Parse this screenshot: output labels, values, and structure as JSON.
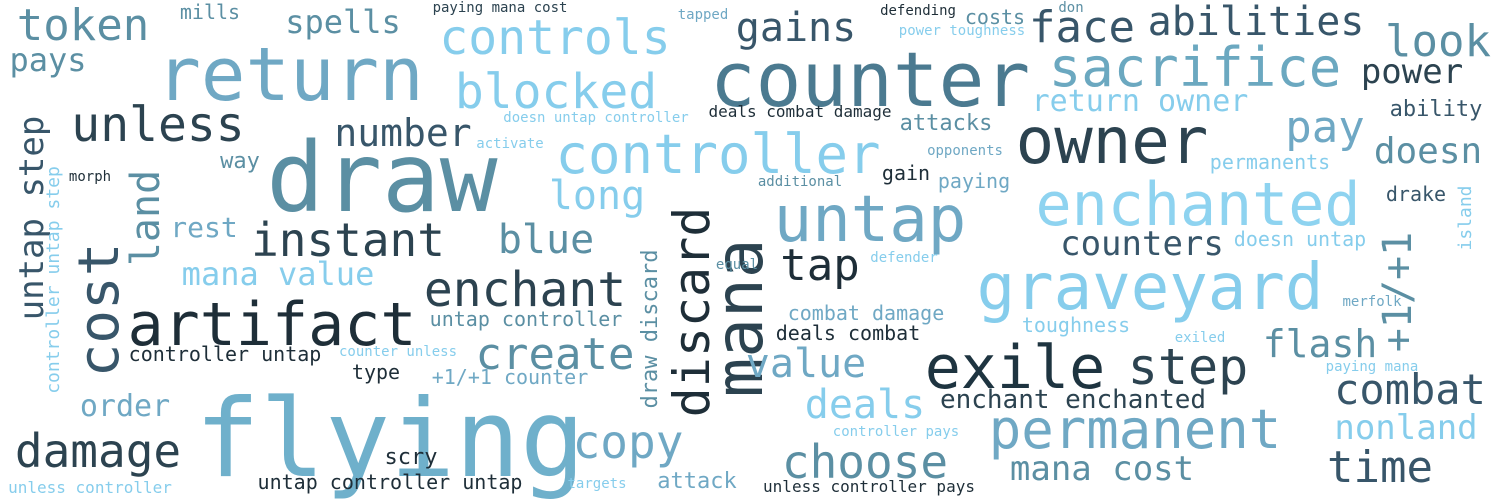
{
  "words": [
    {
      "text": "flying",
      "size": 108,
      "color": "#6fb0cb",
      "orient": "h"
    },
    {
      "text": "draw",
      "size": 96,
      "color": "#5b8fa3",
      "orient": "h"
    },
    {
      "text": "counter",
      "size": 76,
      "color": "#4b7a90",
      "orient": "h"
    },
    {
      "text": "return",
      "size": 74,
      "color": "#6fa8c4",
      "orient": "h"
    },
    {
      "text": "owner",
      "size": 64,
      "color": "#2c4350",
      "orient": "h"
    },
    {
      "text": "untap",
      "size": 64,
      "color": "#6fa8c4",
      "orient": "h"
    },
    {
      "text": "graveyard",
      "size": 64,
      "color": "#86cdec",
      "orient": "h"
    },
    {
      "text": "enchanted",
      "size": 60,
      "color": "#8ed3f0",
      "orient": "h"
    },
    {
      "text": "artifact",
      "size": 60,
      "color": "#1e2e38",
      "orient": "h"
    },
    {
      "text": "sacrifice",
      "size": 54,
      "color": "#6ba8c0",
      "orient": "h"
    },
    {
      "text": "exile",
      "size": 60,
      "color": "#1e3440",
      "orient": "h"
    },
    {
      "text": "permanent",
      "size": 54,
      "color": "#6fa8c4",
      "orient": "h"
    },
    {
      "text": "controller",
      "size": 54,
      "color": "#86cdec",
      "orient": "h"
    },
    {
      "text": "mana",
      "size": 66,
      "color": "#2c4350",
      "orient": "v"
    },
    {
      "text": "discard",
      "size": 50,
      "color": "#1e2e38",
      "orient": "v"
    },
    {
      "text": "cost",
      "size": 56,
      "color": "#38566a",
      "orient": "v"
    },
    {
      "text": "controls",
      "size": 48,
      "color": "#86cdec",
      "orient": "h"
    },
    {
      "text": "blocked",
      "size": 48,
      "color": "#86cdec",
      "orient": "h"
    },
    {
      "text": "step",
      "size": 50,
      "color": "#2c4350",
      "orient": "h"
    },
    {
      "text": "enchant",
      "size": 48,
      "color": "#2c4350",
      "orient": "h"
    },
    {
      "text": "instant",
      "size": 46,
      "color": "#2c4350",
      "orient": "h"
    },
    {
      "text": "unless",
      "size": 48,
      "color": "#2c4350",
      "orient": "h"
    },
    {
      "text": "damage",
      "size": 46,
      "color": "#2c4350",
      "orient": "h"
    },
    {
      "text": "choose",
      "size": 46,
      "color": "#5b8fa3",
      "orient": "h"
    },
    {
      "text": "copy",
      "size": 46,
      "color": "#6fa8c4",
      "orient": "h"
    },
    {
      "text": "create",
      "size": 44,
      "color": "#5b8fa3",
      "orient": "h"
    },
    {
      "text": "token",
      "size": 44,
      "color": "#5b8fa3",
      "orient": "h"
    },
    {
      "text": "face",
      "size": 44,
      "color": "#38566a",
      "orient": "h"
    },
    {
      "text": "look",
      "size": 44,
      "color": "#5b8fa3",
      "orient": "h"
    },
    {
      "text": "pay",
      "size": 44,
      "color": "#6fa8c4",
      "orient": "h"
    },
    {
      "text": "tap",
      "size": 44,
      "color": "#1e2e38",
      "orient": "h"
    },
    {
      "text": "time",
      "size": 44,
      "color": "#38566a",
      "orient": "h"
    },
    {
      "text": "combat",
      "size": 42,
      "color": "#38566a",
      "orient": "h"
    },
    {
      "text": "abilities",
      "size": 40,
      "color": "#38566a",
      "orient": "h"
    },
    {
      "text": "long",
      "size": 40,
      "color": "#86cdec",
      "orient": "h"
    },
    {
      "text": "blue",
      "size": 40,
      "color": "#5b8fa3",
      "orient": "h"
    },
    {
      "text": "gains",
      "size": 40,
      "color": "#38566a",
      "orient": "h"
    },
    {
      "text": "deals",
      "size": 40,
      "color": "#86cdec",
      "orient": "h"
    },
    {
      "text": "value",
      "size": 40,
      "color": "#6fa8c4",
      "orient": "h"
    },
    {
      "text": "doesn",
      "size": 36,
      "color": "#5b8fa3",
      "orient": "h"
    },
    {
      "text": "number",
      "size": 38,
      "color": "#38566a",
      "orient": "h"
    },
    {
      "text": "flash",
      "size": 38,
      "color": "#5b8fa3",
      "orient": "h"
    },
    {
      "text": "land",
      "size": 40,
      "color": "#5b8fa3",
      "orient": "v"
    },
    {
      "text": "+1/+1",
      "size": 40,
      "color": "#5b8fa3",
      "orient": "v"
    },
    {
      "text": "untap step",
      "size": 34,
      "color": "#38566a",
      "orient": "v"
    },
    {
      "text": "power",
      "size": 34,
      "color": "#2c4350",
      "orient": "h"
    },
    {
      "text": "mana cost",
      "size": 34,
      "color": "#5b8fa3",
      "orient": "h"
    },
    {
      "text": "nonland",
      "size": 34,
      "color": "#86cdec",
      "orient": "h"
    },
    {
      "text": "counters",
      "size": 34,
      "color": "#38566a",
      "orient": "h"
    },
    {
      "text": "mana value",
      "size": 32,
      "color": "#86cdec",
      "orient": "h"
    },
    {
      "text": "spells",
      "size": 32,
      "color": "#5b8fa3",
      "orient": "h"
    },
    {
      "text": "pays",
      "size": 32,
      "color": "#5b8fa3",
      "orient": "h"
    },
    {
      "text": "return owner",
      "size": 30,
      "color": "#86cdec",
      "orient": "h"
    },
    {
      "text": "order",
      "size": 30,
      "color": "#6fa8c4",
      "orient": "h"
    },
    {
      "text": "rest",
      "size": 28,
      "color": "#6fa8c4",
      "orient": "h"
    },
    {
      "text": "enchant enchanted",
      "size": 26,
      "color": "#2c4350",
      "orient": "h"
    },
    {
      "text": "draw discard",
      "size": 22,
      "color": "#5b8fa3",
      "orient": "v"
    },
    {
      "text": "scry",
      "size": 22,
      "color": "#1e2e38",
      "orient": "h"
    },
    {
      "text": "attack",
      "size": 22,
      "color": "#6fa8c4",
      "orient": "h"
    },
    {
      "text": "ability",
      "size": 22,
      "color": "#38566a",
      "orient": "h"
    },
    {
      "text": "attacks",
      "size": 22,
      "color": "#5b8fa3",
      "orient": "h"
    },
    {
      "text": "way",
      "size": 22,
      "color": "#5b8fa3",
      "orient": "h"
    },
    {
      "text": "combat damage",
      "size": 20,
      "color": "#6fa8c4",
      "orient": "h"
    },
    {
      "text": "untap controller",
      "size": 20,
      "color": "#5b8fa3",
      "orient": "h"
    },
    {
      "text": "untap controller untap",
      "size": 20,
      "color": "#1e2e38",
      "orient": "h"
    },
    {
      "text": "deals combat",
      "size": 20,
      "color": "#1e2e38",
      "orient": "h"
    },
    {
      "text": "controller untap",
      "size": 20,
      "color": "#1e2e38",
      "orient": "h"
    },
    {
      "text": "toughness",
      "size": 20,
      "color": "#86cdec",
      "orient": "h"
    },
    {
      "text": "doesn untap",
      "size": 20,
      "color": "#86cdec",
      "orient": "h"
    },
    {
      "text": "+1/+1 counter",
      "size": 20,
      "color": "#6fa8c4",
      "orient": "h"
    },
    {
      "text": "type",
      "size": 20,
      "color": "#1e2e38",
      "orient": "h"
    },
    {
      "text": "permanents",
      "size": 20,
      "color": "#86cdec",
      "orient": "h"
    },
    {
      "text": "drake",
      "size": 20,
      "color": "#38566a",
      "orient": "h"
    },
    {
      "text": "mills",
      "size": 20,
      "color": "#5b8fa3",
      "orient": "h"
    },
    {
      "text": "costs",
      "size": 20,
      "color": "#5b8fa3",
      "orient": "h"
    },
    {
      "text": "paying",
      "size": 20,
      "color": "#6fa8c4",
      "orient": "h"
    },
    {
      "text": "gain",
      "size": 20,
      "color": "#1e2e38",
      "orient": "h"
    },
    {
      "text": "controller untap step",
      "size": 18,
      "color": "#86cdec",
      "orient": "v"
    },
    {
      "text": "island",
      "size": 18,
      "color": "#86cdec",
      "orient": "v"
    },
    {
      "text": "deals combat damage",
      "size": 16,
      "color": "#1e2e38",
      "orient": "h"
    },
    {
      "text": "unless controller pays",
      "size": 16,
      "color": "#1e2e38",
      "orient": "h"
    },
    {
      "text": "unless controller",
      "size": 16,
      "color": "#86cdec",
      "orient": "h"
    },
    {
      "text": "paying mana cost",
      "size": 14,
      "color": "#2c4350",
      "orient": "h"
    },
    {
      "text": "doesn untap controller",
      "size": 14,
      "color": "#86cdec",
      "orient": "h"
    },
    {
      "text": "counter unless",
      "size": 14,
      "color": "#86cdec",
      "orient": "h"
    },
    {
      "text": "controller pays",
      "size": 14,
      "color": "#86cdec",
      "orient": "h"
    },
    {
      "text": "power toughness",
      "size": 14,
      "color": "#86cdec",
      "orient": "h"
    },
    {
      "text": "defending",
      "size": 14,
      "color": "#1e2e38",
      "orient": "h"
    },
    {
      "text": "tapped",
      "size": 14,
      "color": "#6fa8c4",
      "orient": "h"
    },
    {
      "text": "don",
      "size": 14,
      "color": "#5b8fa3",
      "orient": "h"
    },
    {
      "text": "activate",
      "size": 14,
      "color": "#86cdec",
      "orient": "h"
    },
    {
      "text": "opponents",
      "size": 14,
      "color": "#6fa8c4",
      "orient": "h"
    },
    {
      "text": "additional",
      "size": 14,
      "color": "#5b8fa3",
      "orient": "h"
    },
    {
      "text": "morph",
      "size": 14,
      "color": "#1e2e38",
      "orient": "h"
    },
    {
      "text": "defender",
      "size": 14,
      "color": "#86cdec",
      "orient": "h"
    },
    {
      "text": "equal",
      "size": 14,
      "color": "#5b8fa3",
      "orient": "h"
    },
    {
      "text": "merfolk",
      "size": 14,
      "color": "#6fa8c4",
      "orient": "h"
    },
    {
      "text": "exiled",
      "size": 14,
      "color": "#86cdec",
      "orient": "h"
    },
    {
      "text": "paying mana",
      "size": 14,
      "color": "#86cdec",
      "orient": "h"
    },
    {
      "text": "targets",
      "size": 14,
      "color": "#86cdec",
      "orient": "h"
    }
  ]
}
